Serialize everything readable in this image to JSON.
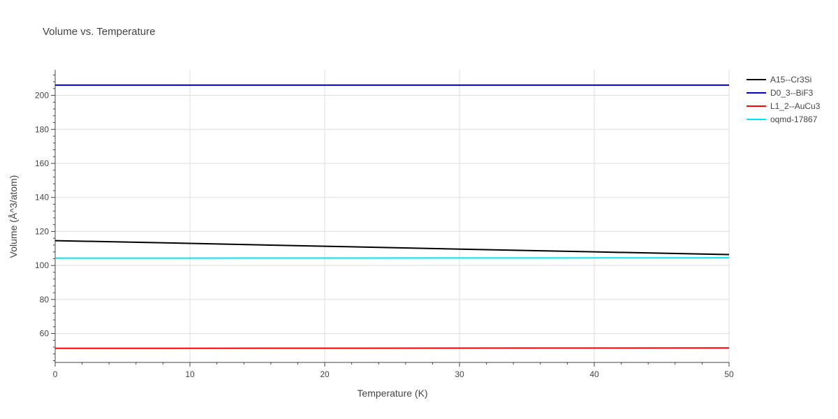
{
  "chart_data": {
    "type": "line",
    "title": "Volume vs. Temperature",
    "xlabel": "Temperature (K)",
    "ylabel": "Volume (Å^3/atom)",
    "xlim": [
      0,
      50
    ],
    "ylim": [
      43,
      215
    ],
    "xticks": [
      0,
      10,
      20,
      30,
      40,
      50
    ],
    "yticks": [
      60,
      80,
      100,
      120,
      140,
      160,
      180,
      200
    ],
    "grid": true,
    "legend_position": "right",
    "series": [
      {
        "name": "A15--Cr3Si",
        "color": "#000000",
        "x": [
          0,
          10,
          20,
          30,
          40,
          50
        ],
        "y": [
          114.6,
          113.0,
          111.3,
          109.6,
          108.0,
          106.4
        ]
      },
      {
        "name": "D0_3--BiF3",
        "color": "#0000cc",
        "x": [
          0,
          50
        ],
        "y": [
          206.0,
          206.0
        ]
      },
      {
        "name": "L1_2--AuCu3",
        "color": "#ff0000",
        "x": [
          0,
          50
        ],
        "y": [
          51.3,
          51.5
        ]
      },
      {
        "name": "oqmd-17867",
        "color": "#00e5ee",
        "x": [
          0,
          50
        ],
        "y": [
          104.3,
          104.5
        ]
      }
    ]
  }
}
